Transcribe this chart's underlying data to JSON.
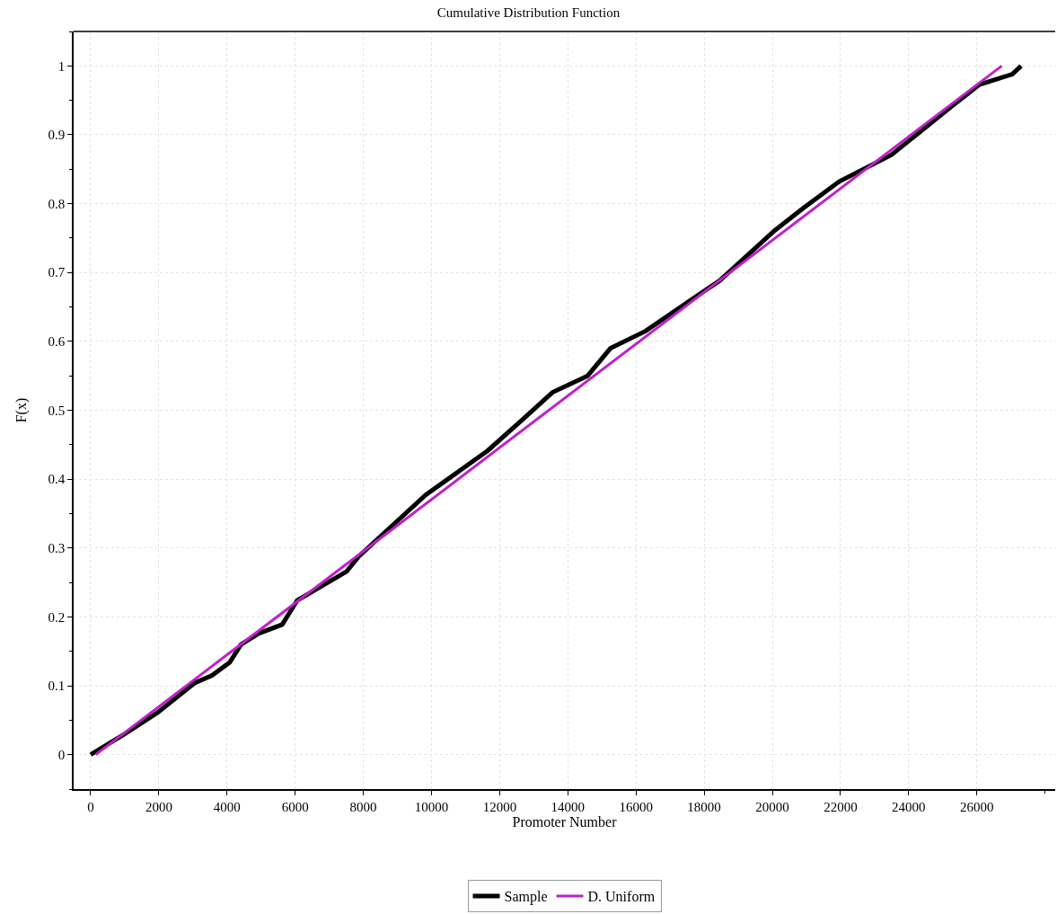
{
  "chart_data": {
    "type": "line",
    "title": "Cumulative Distribution Function",
    "xlabel": "Promoter Number",
    "ylabel": "F(x)",
    "xlim": [
      -500,
      28300
    ],
    "xticks": [
      0,
      2000,
      4000,
      6000,
      8000,
      10000,
      12000,
      14000,
      16000,
      18000,
      20000,
      22000,
      24000,
      26000
    ],
    "ylim": [
      -0.05,
      1.05
    ],
    "yticks": [
      0,
      0.1,
      0.2,
      0.3,
      0.4,
      0.5,
      0.6,
      0.7,
      0.8,
      0.9,
      1
    ],
    "grid": true,
    "legend": "bottom",
    "marker": "none",
    "line_style": "solid",
    "series": [
      {
        "name": "Sample",
        "color": "#000000",
        "x": [
          0,
          1000,
          1960,
          3050,
          3560,
          4080,
          4410,
          4930,
          5620,
          6060,
          7510,
          7870,
          9830,
          11640,
          12590,
          13550,
          14580,
          15250,
          16280,
          17670,
          18450,
          20070,
          20920,
          21960,
          23500,
          25230,
          26080,
          27040,
          27300
        ],
        "values": [
          0,
          0.03,
          0.061,
          0.104,
          0.115,
          0.134,
          0.16,
          0.176,
          0.189,
          0.224,
          0.266,
          0.288,
          0.377,
          0.441,
          0.483,
          0.526,
          0.55,
          0.59,
          0.615,
          0.662,
          0.688,
          0.761,
          0.794,
          0.832,
          0.871,
          0.94,
          0.973,
          0.988,
          1.0
        ]
      },
      {
        "name": "D. Uniform",
        "color": "#c020c8",
        "x": [
          150,
          26730
        ],
        "values": [
          0,
          1.0
        ]
      }
    ]
  }
}
